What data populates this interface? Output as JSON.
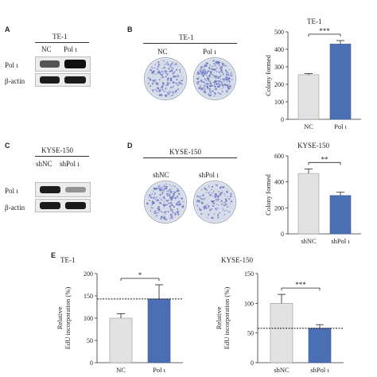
{
  "panels": {
    "A": {
      "letter": "A",
      "cell_line": "TE-1",
      "lanes": [
        "NC",
        "Pol ι"
      ],
      "rows": [
        "Pol ι",
        "β-actin"
      ]
    },
    "B": {
      "letter": "B",
      "cell_line": "TE-1",
      "dishes": [
        "NC",
        "Pol ι"
      ]
    },
    "C": {
      "letter": "C",
      "cell_line": "KYSE-150",
      "lanes": [
        "shNC",
        "shPol ι"
      ],
      "rows": [
        "Pol ι",
        "β-actin"
      ]
    },
    "D": {
      "letter": "D",
      "cell_line": "KYSE-150",
      "dishes": [
        "shNC",
        "shPol ι"
      ]
    },
    "E": {
      "letter": "E"
    }
  },
  "colors": {
    "control": "#e2e2e2",
    "treatment": "#4a6fb5",
    "dish": "#d7dde8",
    "colony": "#6a77c2"
  },
  "chart_data": [
    {
      "id": "B-colony",
      "type": "bar",
      "title": "TE-1",
      "ylabel": "Colony formed",
      "categories": [
        "NC",
        "Pol ι"
      ],
      "values": [
        255,
        430
      ],
      "errors": [
        6,
        20
      ],
      "ylim": [
        0,
        500
      ],
      "yticks": [
        0,
        100,
        200,
        300,
        400,
        500
      ],
      "significance": "***"
    },
    {
      "id": "D-colony",
      "type": "bar",
      "title": "KYSE-150",
      "ylabel": "Colony formed",
      "categories": [
        "shNC",
        "shPol ι"
      ],
      "values": [
        465,
        295
      ],
      "errors": [
        35,
        25
      ],
      "ylim": [
        0,
        600
      ],
      "yticks": [
        0,
        200,
        400,
        600
      ],
      "significance": "**"
    },
    {
      "id": "E-te1",
      "type": "bar",
      "title": "TE-1",
      "ylabel": "Relative EdU incorporation (%)",
      "categories": [
        "NC",
        "Pol ι"
      ],
      "values": [
        100,
        143
      ],
      "errors": [
        10,
        32
      ],
      "ylim": [
        0,
        200
      ],
      "yticks": [
        0,
        50,
        100,
        150,
        200
      ],
      "significance": "*",
      "dotted_ref": 143
    },
    {
      "id": "E-kyse",
      "type": "bar",
      "title": "KYSE-150",
      "ylabel": "Relative EdU incorporation (%)",
      "categories": [
        "shNC",
        "shPol ι"
      ],
      "values": [
        100,
        58
      ],
      "errors": [
        15,
        6
      ],
      "ylim": [
        0,
        150
      ],
      "yticks": [
        0,
        50,
        100,
        150
      ],
      "significance": "***",
      "dotted_ref": 58
    }
  ]
}
